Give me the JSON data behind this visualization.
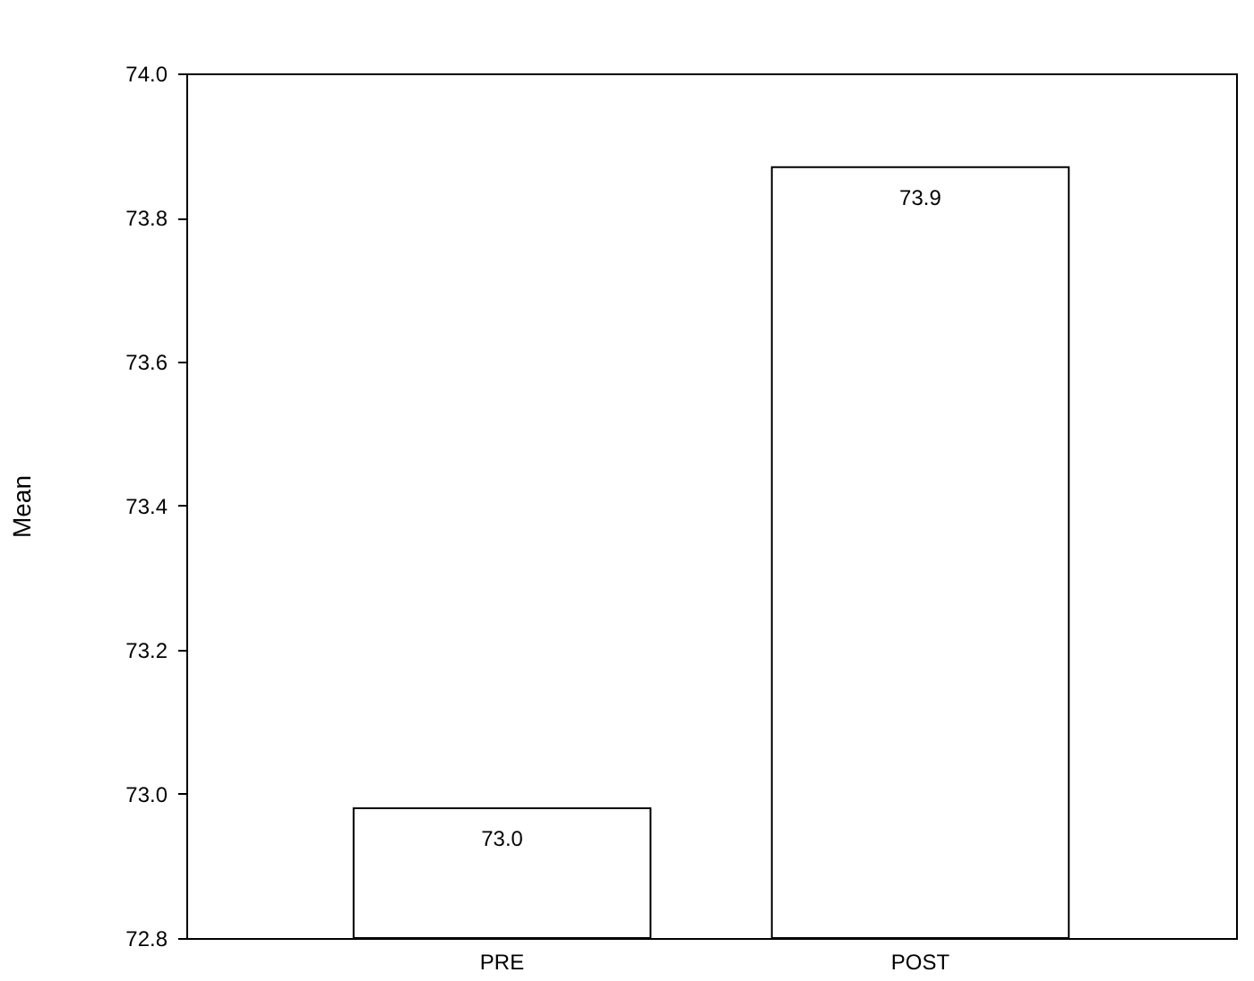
{
  "chart_data": {
    "type": "bar",
    "ylabel": "Mean",
    "categories": [
      "PRE",
      "POST"
    ],
    "values": [
      72.98,
      73.87
    ],
    "value_labels": [
      "73.0",
      "73.9"
    ],
    "color": "#ffffff",
    "ylim": [
      72.8,
      74.0
    ],
    "yticks": [
      {
        "value": 72.8,
        "label": "72.8"
      },
      {
        "value": 73.0,
        "label": "73.0"
      },
      {
        "value": 73.2,
        "label": "73.2"
      },
      {
        "value": 73.4,
        "label": "73.4"
      },
      {
        "value": 73.6,
        "label": "73.6"
      },
      {
        "value": 73.8,
        "label": "73.8"
      },
      {
        "value": 74.0,
        "label": "74.0"
      }
    ],
    "grid": false
  }
}
